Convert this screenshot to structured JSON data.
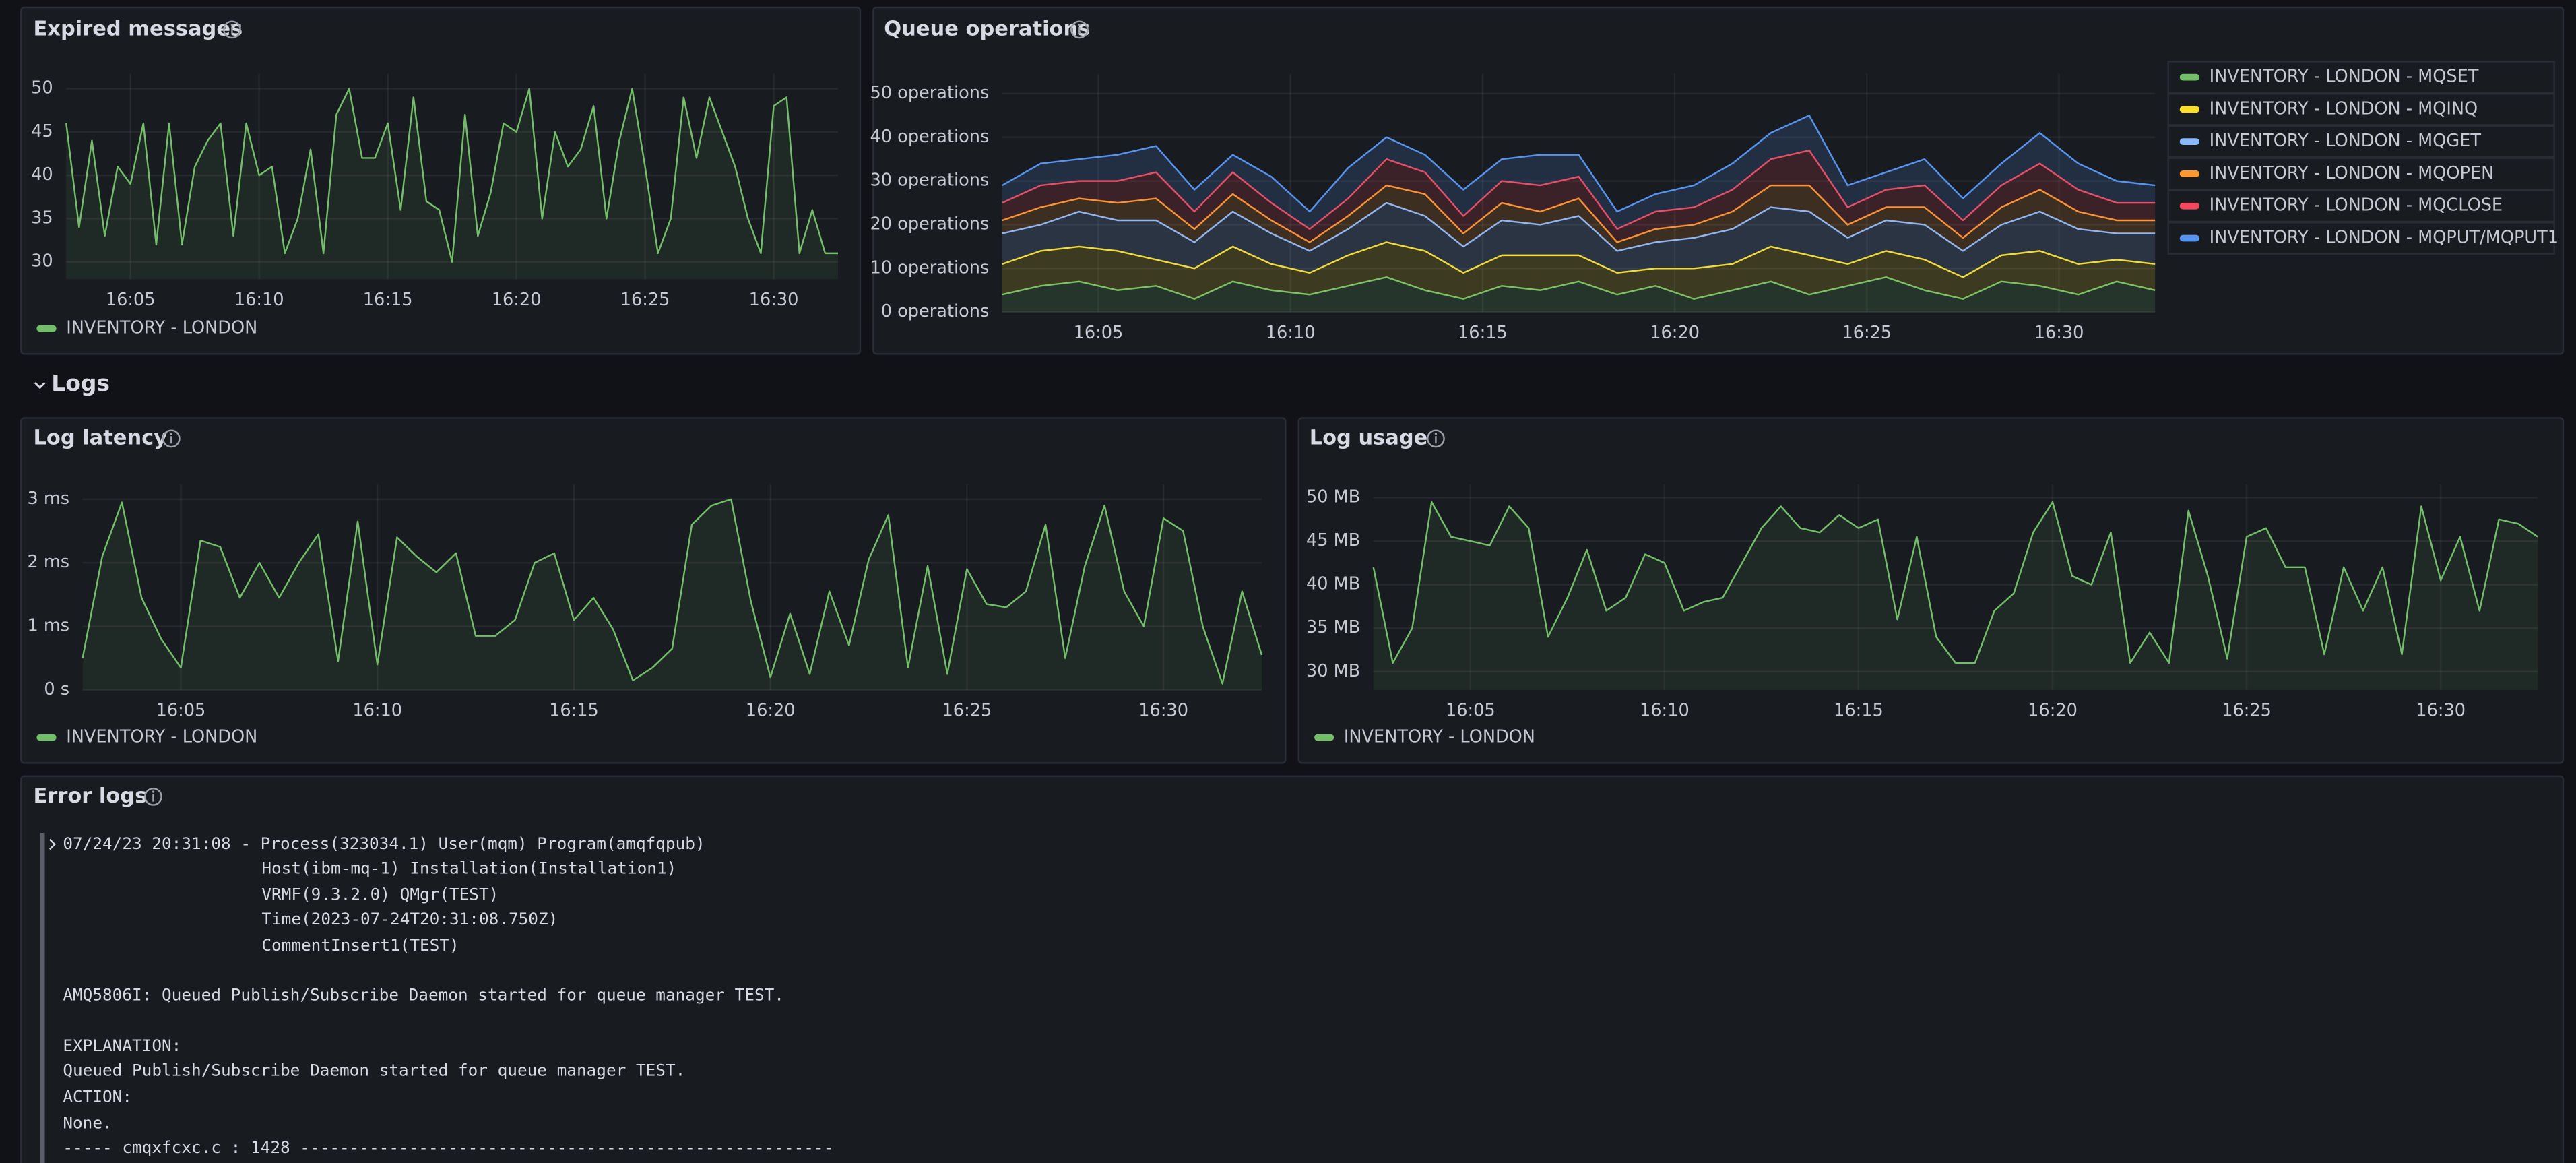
{
  "chart_data": [
    {
      "type": "line",
      "title": "Expired messages",
      "legend": "bottom",
      "grid": true,
      "x": [
        962.5,
        963,
        963.5,
        964,
        964.5,
        965,
        965.5,
        966,
        966.5,
        967,
        967.5,
        968,
        968.5,
        969,
        969.5,
        970,
        970.5,
        971,
        971.5,
        972,
        972.5,
        973,
        973.5,
        974,
        974.5,
        975,
        975.5,
        976,
        976.5,
        977,
        977.5,
        978,
        978.5,
        979,
        979.5,
        980,
        980.5,
        981,
        981.5,
        982,
        982.5,
        983,
        983.5,
        984,
        984.5,
        985,
        985.5,
        986,
        986.5,
        987,
        987.5,
        988,
        988.5,
        989,
        989.5,
        990,
        990.5,
        991,
        991.5,
        992,
        992.5
      ],
      "xlim": [
        962.5,
        992.5
      ],
      "xticks": [
        {
          "value": 965,
          "label": "16:05"
        },
        {
          "value": 970,
          "label": "16:10"
        },
        {
          "value": 975,
          "label": "16:15"
        },
        {
          "value": 980,
          "label": "16:20"
        },
        {
          "value": 985,
          "label": "16:25"
        },
        {
          "value": 990,
          "label": "16:30"
        }
      ],
      "ylim": [
        28,
        51.7
      ],
      "yticks": [
        30,
        35,
        40,
        45,
        50
      ],
      "series": [
        {
          "name": "INVENTORY - LONDON",
          "color": "#73bf69",
          "values": [
            46,
            34,
            44,
            33,
            41,
            39,
            46,
            32,
            46,
            32,
            41,
            44,
            46,
            33,
            46,
            40,
            41,
            31,
            35,
            43,
            31,
            47,
            50,
            42,
            42,
            46,
            36,
            49,
            37,
            36,
            30,
            47,
            33,
            38,
            46,
            45,
            50,
            35,
            45,
            41,
            43,
            48,
            35,
            44,
            50,
            41,
            31,
            35,
            49,
            42,
            49,
            45,
            41,
            35,
            31,
            48,
            49,
            31,
            36,
            31,
            31
          ]
        }
      ]
    },
    {
      "type": "area",
      "title": "Queue operations",
      "legend": "right",
      "grid": true,
      "stacked": true,
      "x": [
        962.5,
        963.5,
        964.5,
        965.5,
        966.5,
        967.5,
        968.5,
        969.5,
        970.5,
        971.5,
        972.5,
        973.5,
        974.5,
        975.5,
        976.5,
        977.5,
        978.5,
        979.5,
        980.5,
        981.5,
        982.5,
        983.5,
        984.5,
        985.5,
        986.5,
        987.5,
        988.5,
        989.5,
        990.5,
        991.5,
        992.5
      ],
      "xlim": [
        962.5,
        992.5
      ],
      "xticks": [
        {
          "value": 965,
          "label": "16:05"
        },
        {
          "value": 970,
          "label": "16:10"
        },
        {
          "value": 975,
          "label": "16:15"
        },
        {
          "value": 980,
          "label": "16:20"
        },
        {
          "value": 985,
          "label": "16:25"
        },
        {
          "value": 990,
          "label": "16:30"
        }
      ],
      "ylim": [
        0,
        54.5
      ],
      "yticks": [
        {
          "value": 0,
          "label": "0 operations"
        },
        {
          "value": 10,
          "label": "10 operations"
        },
        {
          "value": 20,
          "label": "20 operations"
        },
        {
          "value": 30,
          "label": "30 operations"
        },
        {
          "value": 40,
          "label": "40 operations"
        },
        {
          "value": 50,
          "label": "50 operations"
        }
      ],
      "series": [
        {
          "name": "INVENTORY - LONDON - MQSET",
          "color": "#73bf69",
          "values": [
            4,
            6,
            7,
            5,
            6,
            3,
            7,
            5,
            4,
            6,
            8,
            5,
            3,
            6,
            5,
            7,
            4,
            6,
            3,
            5,
            7,
            4,
            6,
            8,
            5,
            3,
            7,
            6,
            4,
            7,
            5
          ]
        },
        {
          "name": "INVENTORY - LONDON - MQINQ",
          "color": "#fade2a",
          "values": [
            7,
            8,
            8,
            9,
            6,
            7,
            8,
            6,
            5,
            7,
            8,
            9,
            6,
            7,
            8,
            6,
            5,
            4,
            7,
            6,
            8,
            9,
            5,
            6,
            7,
            5,
            6,
            8,
            7,
            5,
            6
          ]
        },
        {
          "name": "INVENTORY - LONDON - MQGET",
          "color": "#8ab8ff",
          "values": [
            7,
            6,
            8,
            7,
            9,
            6,
            8,
            7,
            5,
            6,
            9,
            8,
            6,
            8,
            7,
            9,
            5,
            6,
            7,
            8,
            9,
            10,
            6,
            7,
            8,
            6,
            7,
            9,
            8,
            6,
            7
          ]
        },
        {
          "name": "INVENTORY - LONDON - MQOPEN",
          "color": "#ff9830",
          "values": [
            3,
            4,
            3,
            4,
            5,
            3,
            4,
            3,
            2,
            3,
            4,
            5,
            3,
            4,
            3,
            4,
            2,
            3,
            3,
            4,
            5,
            6,
            3,
            3,
            4,
            3,
            4,
            5,
            4,
            3,
            3
          ]
        },
        {
          "name": "INVENTORY - LONDON - MQCLOSE",
          "color": "#f2495c",
          "values": [
            4,
            5,
            4,
            5,
            6,
            4,
            5,
            4,
            3,
            4,
            6,
            5,
            4,
            5,
            6,
            5,
            3,
            4,
            4,
            5,
            6,
            8,
            4,
            4,
            5,
            4,
            5,
            6,
            5,
            4,
            4
          ]
        },
        {
          "name": "INVENTORY - LONDON - MQPUT/MQPUT1",
          "color": "#5794f2",
          "values": [
            4,
            5,
            5,
            6,
            6,
            5,
            4,
            6,
            4,
            7,
            5,
            4,
            6,
            5,
            7,
            5,
            4,
            4,
            5,
            6,
            6,
            8,
            5,
            4,
            6,
            5,
            5,
            7,
            6,
            5,
            4
          ]
        }
      ]
    },
    {
      "type": "line",
      "title": "Log latency",
      "legend": "bottom",
      "grid": true,
      "x": [
        962.5,
        963,
        963.5,
        964,
        964.5,
        965,
        965.5,
        966,
        966.5,
        967,
        967.5,
        968,
        968.5,
        969,
        969.5,
        970,
        970.5,
        971,
        971.5,
        972,
        972.5,
        973,
        973.5,
        974,
        974.5,
        975,
        975.5,
        976,
        976.5,
        977,
        977.5,
        978,
        978.5,
        979,
        979.5,
        980,
        980.5,
        981,
        981.5,
        982,
        982.5,
        983,
        983.5,
        984,
        984.5,
        985,
        985.5,
        986,
        986.5,
        987,
        987.5,
        988,
        988.5,
        989,
        989.5,
        990,
        990.5,
        991,
        991.5,
        992,
        992.5
      ],
      "xlim": [
        962.5,
        992.5
      ],
      "xticks": [
        {
          "value": 965,
          "label": "16:05"
        },
        {
          "value": 970,
          "label": "16:10"
        },
        {
          "value": 975,
          "label": "16:15"
        },
        {
          "value": 980,
          "label": "16:20"
        },
        {
          "value": 985,
          "label": "16:25"
        },
        {
          "value": 990,
          "label": "16:30"
        }
      ],
      "ylim": [
        0,
        3.23
      ],
      "yticks": [
        {
          "value": 0,
          "label": "0 s"
        },
        {
          "value": 1,
          "label": "1 ms"
        },
        {
          "value": 2,
          "label": "2 ms"
        },
        {
          "value": 3,
          "label": "3 ms"
        }
      ],
      "series": [
        {
          "name": "INVENTORY - LONDON",
          "color": "#73bf69",
          "values": [
            0.5,
            2.1,
            2.95,
            1.45,
            0.8,
            0.35,
            2.35,
            2.25,
            1.45,
            2.0,
            1.45,
            2.0,
            2.45,
            0.45,
            2.65,
            0.4,
            2.4,
            2.1,
            1.85,
            2.15,
            0.85,
            0.85,
            1.1,
            2.0,
            2.15,
            1.1,
            1.45,
            0.95,
            0.15,
            0.35,
            0.65,
            2.6,
            2.9,
            3.0,
            1.4,
            0.2,
            1.2,
            0.25,
            1.55,
            0.7,
            2.05,
            2.75,
            0.35,
            1.95,
            0.25,
            1.9,
            1.35,
            1.3,
            1.55,
            2.6,
            0.5,
            1.95,
            2.9,
            1.55,
            1.0,
            2.7,
            2.5,
            1.0,
            0.1,
            1.55,
            0.55
          ]
        }
      ]
    },
    {
      "type": "line",
      "title": "Log usage",
      "legend": "bottom",
      "grid": true,
      "x": [
        962.5,
        963,
        963.5,
        964,
        964.5,
        965,
        965.5,
        966,
        966.5,
        967,
        967.5,
        968,
        968.5,
        969,
        969.5,
        970,
        970.5,
        971,
        971.5,
        972,
        972.5,
        973,
        973.5,
        974,
        974.5,
        975,
        975.5,
        976,
        976.5,
        977,
        977.5,
        978,
        978.5,
        979,
        979.5,
        980,
        980.5,
        981,
        981.5,
        982,
        982.5,
        983,
        983.5,
        984,
        984.5,
        985,
        985.5,
        986,
        986.5,
        987,
        987.5,
        988,
        988.5,
        989,
        989.5,
        990,
        990.5,
        991,
        991.5,
        992,
        992.5
      ],
      "xlim": [
        962.5,
        992.5
      ],
      "xticks": [
        {
          "value": 965,
          "label": "16:05"
        },
        {
          "value": 970,
          "label": "16:10"
        },
        {
          "value": 975,
          "label": "16:15"
        },
        {
          "value": 980,
          "label": "16:20"
        },
        {
          "value": 985,
          "label": "16:25"
        },
        {
          "value": 990,
          "label": "16:30"
        }
      ],
      "ylim": [
        27.9,
        51.5
      ],
      "yticks": [
        {
          "value": 30,
          "label": "30 MB"
        },
        {
          "value": 35,
          "label": "35 MB"
        },
        {
          "value": 40,
          "label": "40 MB"
        },
        {
          "value": 45,
          "label": "45 MB"
        },
        {
          "value": 50,
          "label": "50 MB"
        }
      ],
      "series": [
        {
          "name": "INVENTORY - LONDON",
          "color": "#73bf69",
          "values": [
            42,
            31,
            35,
            49.5,
            45.5,
            45,
            44.5,
            49,
            46.5,
            34,
            38.5,
            44,
            37,
            38.5,
            43.5,
            42.5,
            37,
            38,
            38.5,
            42.5,
            46.5,
            49,
            46.5,
            46,
            48,
            46.5,
            47.5,
            36,
            45.5,
            34,
            31,
            31,
            37,
            39,
            46,
            49.5,
            41,
            40,
            46,
            31,
            34.5,
            31,
            48.5,
            41,
            31.5,
            45.5,
            46.5,
            42,
            42,
            32,
            42,
            37,
            42,
            32,
            49,
            40.5,
            45.5,
            37,
            47.5,
            47,
            45.5
          ]
        }
      ]
    }
  ],
  "section_title": "Logs",
  "error_logs": {
    "title": "Error logs",
    "header": "07/24/23 20:31:08 - Process(323034.1) User(mqm) Program(amqfqpub)",
    "header_continuation": [
      "Host(ibm-mq-1) Installation(Installation1)",
      "VRMF(9.3.2.0) QMgr(TEST)",
      "Time(2023-07-24T20:31:08.750Z)",
      "CommentInsert1(TEST)"
    ],
    "message": "AMQ5806I: Queued Publish/Subscribe Daemon started for queue manager TEST.",
    "explanation_label": "EXPLANATION:",
    "explanation": "Queued Publish/Subscribe Daemon started for queue manager TEST.",
    "action_label": "ACTION:",
    "action": "None.",
    "footer": "----- cmqxfcxc.c : 1428 ------------------------------------------------------"
  }
}
